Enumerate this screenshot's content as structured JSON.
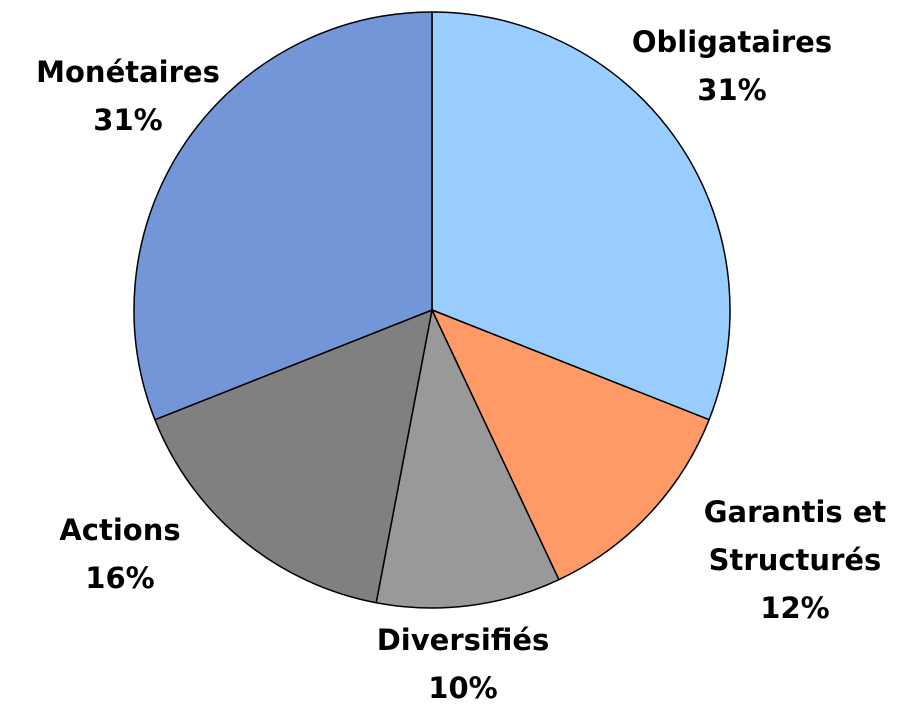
{
  "chart_data": {
    "type": "pie",
    "categories": [
      "Obligataires",
      "Garantis et Structurés",
      "Diversifiés",
      "Actions",
      "Monétaires"
    ],
    "values": [
      31,
      12,
      10,
      16,
      31
    ],
    "value_labels": [
      "31%",
      "12%",
      "10%",
      "16%",
      "31%"
    ],
    "colors": [
      "#99ccff",
      "#ff9966",
      "#999999",
      "#808080",
      "#7396d8"
    ]
  }
}
